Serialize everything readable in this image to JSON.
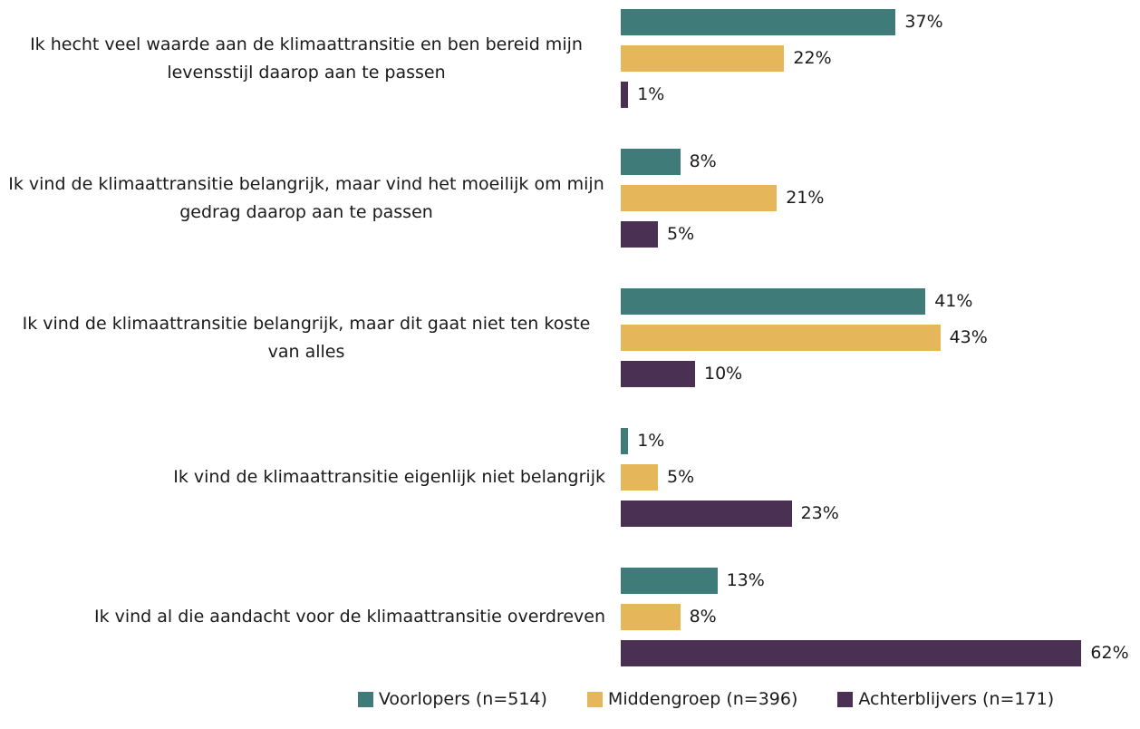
{
  "chart_data": {
    "type": "bar",
    "orientation": "horizontal",
    "categories": [
      "Ik hecht veel waarde aan de klimaattransitie en ben bereid mijn levensstijl daarop aan te passen",
      "Ik vind de klimaattransitie belangrijk, maar vind het moeilijk om mijn gedrag daarop aan te passen",
      "Ik vind de klimaattransitie belangrijk, maar dit gaat niet ten koste van alles",
      "Ik vind de klimaattransitie eigenlijk niet belangrijk",
      "Ik vind al die aandacht voor de klimaattransitie overdreven"
    ],
    "series": [
      {
        "name": "Voorlopers (n=514)",
        "color": "#3e7b79",
        "values": [
          37,
          8,
          41,
          1,
          13
        ],
        "value_labels": [
          "37%",
          "8%",
          "41%",
          "1%",
          "13%"
        ]
      },
      {
        "name": "Middengroep (n=396)",
        "color": "#e6b65a",
        "values": [
          22,
          21,
          43,
          5,
          8
        ],
        "value_labels": [
          "22%",
          "21%",
          "43%",
          "5%",
          "8%"
        ]
      },
      {
        "name": "Achterblijvers (n=171)",
        "color": "#4a3153",
        "values": [
          1,
          5,
          10,
          23,
          62
        ],
        "value_labels": [
          "1%",
          "5%",
          "10%",
          "23%",
          "62%"
        ]
      }
    ],
    "legend": "bottom"
  }
}
